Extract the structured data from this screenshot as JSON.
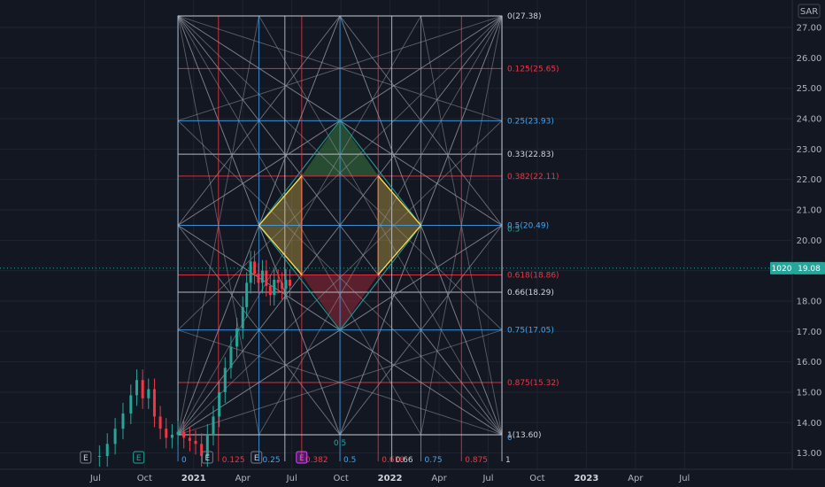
{
  "currency": "SAR",
  "price_badge": {
    "label": "1020",
    "value": "19.08",
    "price": 19.08
  },
  "colors": {
    "bg": "#131722",
    "grid": "#1f2430",
    "white": "#d1d4dc",
    "red": "#f23645",
    "blue": "#2962ff",
    "lightblue": "#42a5f5",
    "teal": "#26a69a",
    "gray": "#9598a1",
    "yellow": "#ffd54f",
    "green": "#4caf50",
    "badge": "#26a69a"
  },
  "chart_data": {
    "type": "line",
    "title": "",
    "ylim": [
      12.6,
      28.0
    ],
    "y_ticks": [
      "13.00",
      "14.00",
      "15.00",
      "16.00",
      "17.00",
      "18.00",
      "19.00",
      "20.00",
      "21.00",
      "22.00",
      "23.00",
      "24.00",
      "25.00",
      "26.00",
      "27.00"
    ],
    "x_ticks": [
      {
        "label": "Jul",
        "t": 2020.5,
        "bold": false
      },
      {
        "label": "Oct",
        "t": 2020.75,
        "bold": false
      },
      {
        "label": "2021",
        "t": 2021.0,
        "bold": true
      },
      {
        "label": "Apr",
        "t": 2021.25,
        "bold": false
      },
      {
        "label": "Jul",
        "t": 2021.5,
        "bold": false
      },
      {
        "label": "Oct",
        "t": 2021.75,
        "bold": false
      },
      {
        "label": "2022",
        "t": 2022.0,
        "bold": true
      },
      {
        "label": "Apr",
        "t": 2022.25,
        "bold": false
      },
      {
        "label": "Jul",
        "t": 2022.5,
        "bold": false
      },
      {
        "label": "Oct",
        "t": 2022.75,
        "bold": false
      },
      {
        "label": "2023",
        "t": 2023.0,
        "bold": true
      },
      {
        "label": "Apr",
        "t": 2023.25,
        "bold": false
      },
      {
        "label": "Jul",
        "t": 2023.5,
        "bold": false
      }
    ],
    "price_series": {
      "t": [
        2020.52,
        2020.56,
        2020.6,
        2020.64,
        2020.68,
        2020.71,
        2020.74,
        2020.77,
        2020.8,
        2020.83,
        2020.86,
        2020.89,
        2020.92,
        2020.95,
        2020.98,
        2021.01,
        2021.04,
        2021.07,
        2021.1,
        2021.13,
        2021.16,
        2021.19,
        2021.22,
        2021.25,
        2021.27,
        2021.29,
        2021.31,
        2021.33,
        2021.35,
        2021.37,
        2021.39,
        2021.41,
        2021.43,
        2021.45,
        2021.47,
        2021.49
      ],
      "v": [
        12.9,
        13.3,
        13.8,
        14.3,
        14.9,
        15.4,
        14.8,
        15.1,
        14.2,
        13.8,
        13.5,
        13.6,
        13.7,
        13.5,
        13.4,
        13.3,
        12.9,
        13.6,
        14.2,
        15.0,
        15.8,
        16.5,
        17.1,
        17.8,
        18.6,
        19.3,
        18.9,
        18.6,
        19.0,
        18.5,
        18.2,
        18.7,
        18.6,
        18.4,
        18.7,
        18.5
      ]
    },
    "fib_box": {
      "t_start": 2020.92,
      "t_end": 2022.57,
      "price_top": 27.38,
      "price_bottom": 13.6
    },
    "price_levels": [
      {
        "ratio": "0",
        "price": 27.38,
        "label": "0(27.38)",
        "color": "white"
      },
      {
        "ratio": "0.125",
        "price": 25.65,
        "label": "0.125(25.65)",
        "color": "red"
      },
      {
        "ratio": "0.25",
        "price": 23.93,
        "label": "0.25(23.93)",
        "color": "lightblue"
      },
      {
        "ratio": "0.33",
        "price": 22.83,
        "label": "0.33(22.83)",
        "color": "white"
      },
      {
        "ratio": "0.382",
        "price": 22.11,
        "label": "0.382(22.11)",
        "color": "red"
      },
      {
        "ratio": "0.5",
        "price": 20.49,
        "label": "0.5(20.49)",
        "color": "lightblue"
      },
      {
        "ratio": "0.618",
        "price": 18.86,
        "label": "0.618(18.86)",
        "color": "red"
      },
      {
        "ratio": "0.66",
        "price": 18.29,
        "label": "0.66(18.29)",
        "color": "white"
      },
      {
        "ratio": "0.75",
        "price": 17.05,
        "label": "0.75(17.05)",
        "color": "lightblue"
      },
      {
        "ratio": "0.875",
        "price": 15.32,
        "label": "0.875(15.32)",
        "color": "red"
      },
      {
        "ratio": "1",
        "price": 13.6,
        "label": "1(13.60)",
        "color": "white"
      }
    ],
    "time_levels": [
      {
        "ratio": 0,
        "label": "0",
        "color": "lightblue"
      },
      {
        "ratio": 0.125,
        "label": "0.125",
        "color": "red"
      },
      {
        "ratio": 0.25,
        "label": "0.25",
        "color": "lightblue"
      },
      {
        "ratio": 0.33,
        "label": "",
        "color": "white"
      },
      {
        "ratio": 0.382,
        "label": "0.382",
        "color": "red"
      },
      {
        "ratio": 0.5,
        "label": "0.5",
        "color": "lightblue"
      },
      {
        "ratio": 0.618,
        "label": "0.618",
        "color": "red"
      },
      {
        "ratio": 0.66,
        "label": "0.66",
        "color": "white"
      },
      {
        "ratio": 0.75,
        "label": "0.75",
        "color": "lightblue"
      },
      {
        "ratio": 0.875,
        "label": "0.875",
        "color": "red"
      },
      {
        "ratio": 1,
        "label": "1",
        "color": "white"
      }
    ],
    "mid_labels": {
      "right_mid": "0.5",
      "bottom_mid": "0.5",
      "bottom_right": "0"
    },
    "event_markers": [
      {
        "t": 2020.45,
        "label": "E",
        "style": "plain"
      },
      {
        "t": 2020.72,
        "label": "E",
        "style": "teal"
      },
      {
        "t": 2021.07,
        "label": "E",
        "style": "plain"
      },
      {
        "t": 2021.32,
        "label": "E",
        "style": "plain"
      },
      {
        "t": 2021.55,
        "label": "E",
        "style": "purple"
      }
    ]
  }
}
